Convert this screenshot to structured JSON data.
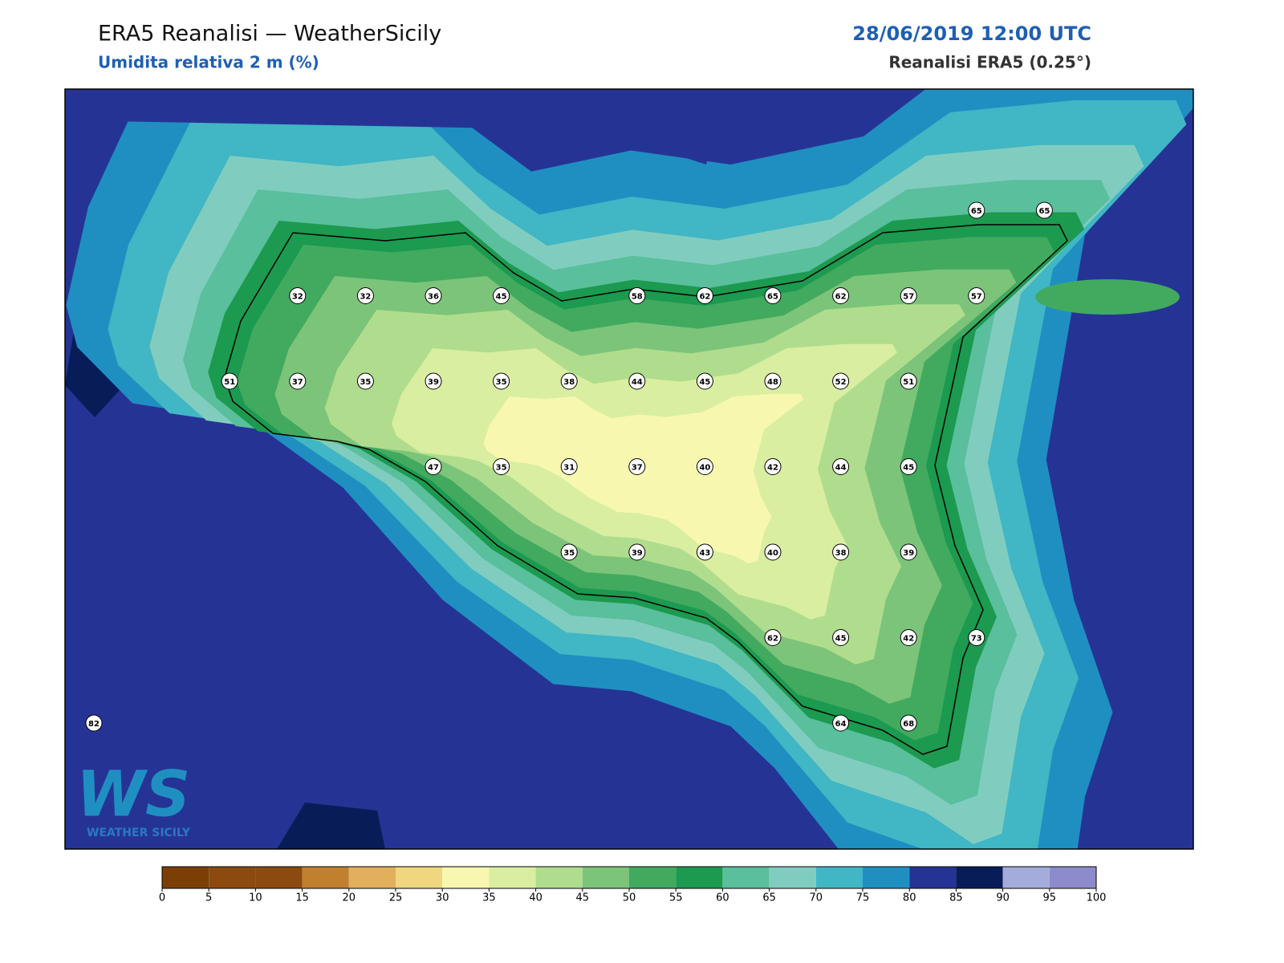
{
  "header": {
    "title": "ERA5 Reanalisi — WeatherSicily",
    "subtitle": "Umidita relativa 2 m (%)",
    "datetime": "28/06/2019 12:00 UTC",
    "source": "Reanalisi ERA5 (0.25°)"
  },
  "stations": [
    65,
    65,
    32,
    32,
    36,
    45,
    58,
    62,
    65,
    62,
    57,
    57,
    51,
    37,
    35,
    39,
    35,
    38,
    44,
    45,
    48,
    52,
    51,
    47,
    35,
    31,
    37,
    40,
    42,
    44,
    45,
    35,
    39,
    43,
    40,
    38,
    39,
    62,
    45,
    42,
    73,
    82,
    64,
    68
  ],
  "colorbar": {
    "ticks": [
      0,
      5,
      10,
      15,
      20,
      25,
      30,
      35,
      40,
      45,
      50,
      55,
      60,
      65,
      70,
      75,
      80,
      85,
      90,
      95,
      100
    ],
    "colors": [
      "#7b3f06",
      "#8c4a0f",
      "#8c4a0f",
      "#c0802e",
      "#e0b05c",
      "#f0d67e",
      "#f7f7b0",
      "#d9eea0",
      "#b0dd8d",
      "#7cc47a",
      "#41aa5f",
      "#1b9a50",
      "#5abf9c",
      "#80cdc0",
      "#41b6c4",
      "#1f8fc2",
      "#253494",
      "#081d58",
      "#a4acdb",
      "#8c8ccc"
    ]
  },
  "logo": {
    "mark": "WS",
    "text": "WEATHER SICILY"
  }
}
